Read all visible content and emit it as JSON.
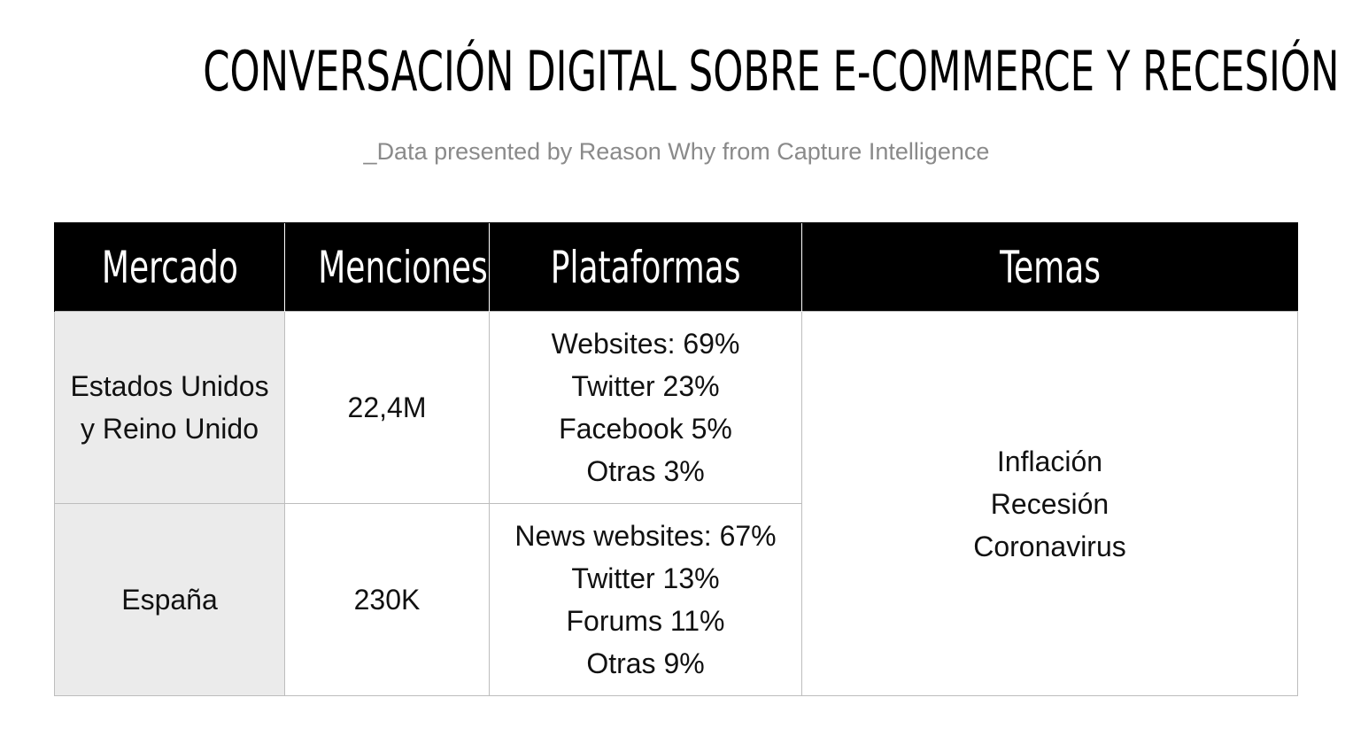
{
  "title": "CONVERSACIÓN DIGITAL SOBRE E-COMMERCE Y RECESIÓN",
  "subtitle": "_Data presented by Reason Why from Capture Intelligence",
  "colors": {
    "header_bg": "#000000",
    "header_text": "#ffffff",
    "market_cell_bg": "#ebebeb",
    "grid_line": "#bdbdbd",
    "subtitle_text": "#8a8a8a"
  },
  "chart_data": {
    "type": "table",
    "columns": [
      "Mercado",
      "Menciones",
      "Plataformas",
      "Temas"
    ],
    "rows": [
      {
        "market_lines": [
          "Estados Unidos",
          "y Reino Unido"
        ],
        "mentions": "22,4M",
        "platforms": [
          "Websites: 69%",
          "Twitter 23%",
          "Facebook 5%",
          "Otras 3%"
        ]
      },
      {
        "market_lines": [
          "España"
        ],
        "mentions": "230K",
        "platforms": [
          "News websites: 67%",
          "Twitter 13%",
          "Forums 11%",
          "Otras 9%"
        ]
      }
    ],
    "topics": [
      "Inflación",
      "Recesión",
      "Coronavirus"
    ]
  }
}
